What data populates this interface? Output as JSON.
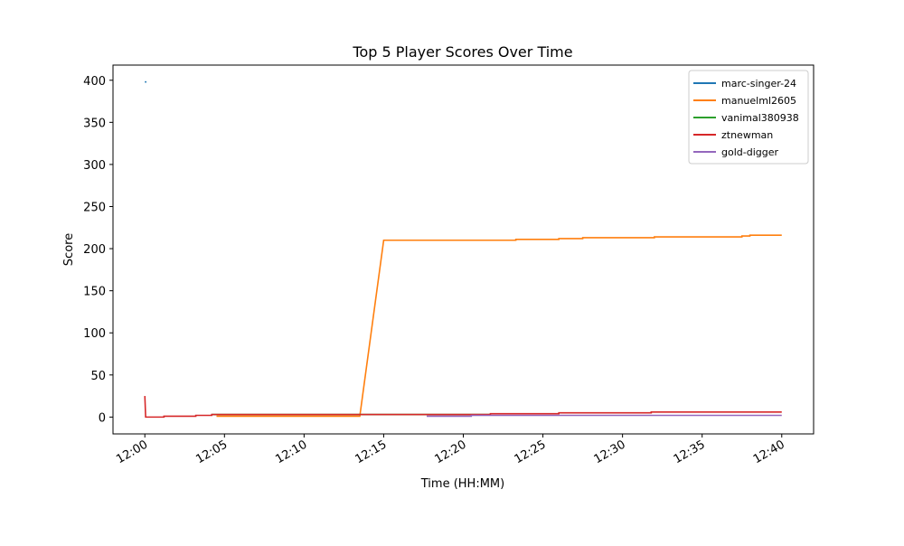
{
  "chart_data": {
    "type": "line",
    "title": "Top 5 Player Scores Over Time",
    "x_label": "Time (HH:MM)",
    "y_label": "Score",
    "xlim": [
      -2,
      42
    ],
    "ylim": [
      -20,
      418
    ],
    "xticks": [
      {
        "value": 0,
        "label": "12:00"
      },
      {
        "value": 5,
        "label": "12:05"
      },
      {
        "value": 10,
        "label": "12:10"
      },
      {
        "value": 15,
        "label": "12:15"
      },
      {
        "value": 20,
        "label": "12:20"
      },
      {
        "value": 25,
        "label": "12:25"
      },
      {
        "value": 30,
        "label": "12:30"
      },
      {
        "value": 35,
        "label": "12:35"
      },
      {
        "value": 40,
        "label": "12:40"
      }
    ],
    "yticks": [
      0,
      50,
      100,
      150,
      200,
      250,
      300,
      350,
      400
    ],
    "legend": "upper right",
    "series": [
      {
        "name": "marc-singer-24",
        "color": "#1f77b4",
        "x": [
          0,
          0.1
        ],
        "values": [
          398,
          398
        ]
      },
      {
        "name": "manuelml2605",
        "color": "#ff7f0e",
        "x": [
          4.5,
          13.5,
          15,
          23.3,
          23.3,
          26,
          26,
          27.5,
          27.5,
          32,
          32,
          37.5,
          37.5,
          38,
          38,
          40
        ],
        "values": [
          1,
          1,
          210,
          210,
          211,
          211,
          212,
          212,
          213,
          213,
          214,
          214,
          215,
          215,
          216,
          216
        ]
      },
      {
        "name": "vanimal380938",
        "color": "#2ca02c",
        "x": [
          4.2,
          21.7
        ],
        "values": [
          3,
          3
        ]
      },
      {
        "name": "ztnewman",
        "color": "#d62728",
        "x": [
          0,
          0.05,
          1.2,
          1.2,
          3.2,
          3.2,
          4.2,
          4.2,
          21.7,
          21.7,
          26,
          26,
          31.8,
          31.8,
          40
        ],
        "values": [
          25,
          0,
          0,
          1,
          1,
          2,
          2,
          3,
          3,
          4,
          4,
          5,
          5,
          6,
          6
        ]
      },
      {
        "name": "gold-digger",
        "color": "#9467bd",
        "x": [
          17.7,
          20.5,
          20.5,
          40
        ],
        "values": [
          1,
          1,
          2,
          2
        ]
      }
    ]
  }
}
